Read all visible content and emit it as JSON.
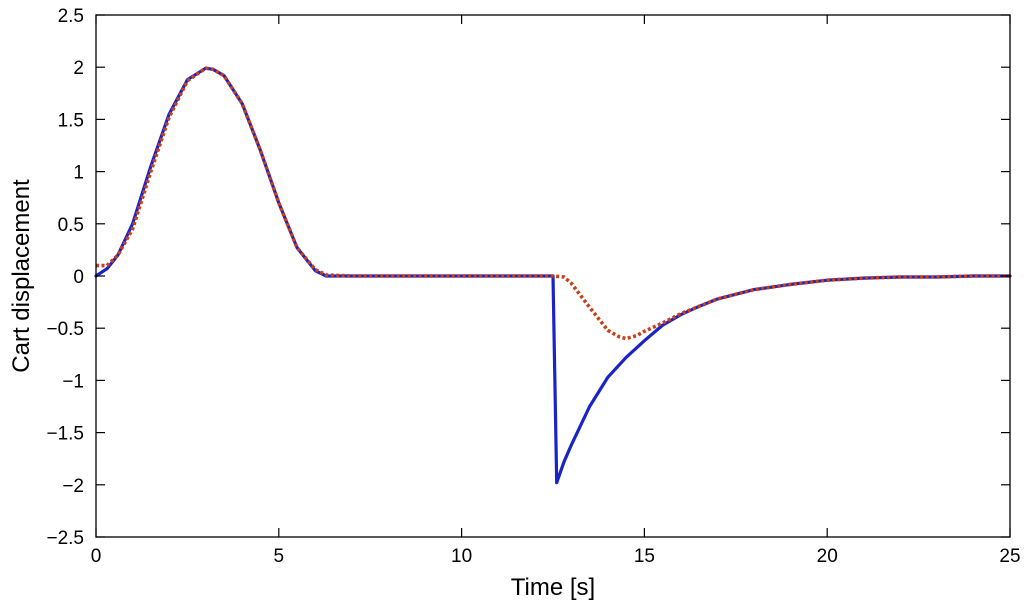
{
  "chart_data": {
    "type": "line",
    "title": "",
    "xlabel": "Time [s]",
    "ylabel": "Cart displacement",
    "xlim": [
      0,
      25
    ],
    "ylim": [
      -2.5,
      2.5
    ],
    "xticks": [
      0,
      5,
      10,
      15,
      20,
      25
    ],
    "xtick_labels": [
      "0",
      "5",
      "10",
      "15",
      "20",
      "25"
    ],
    "yticks": [
      2.5,
      2,
      1.5,
      1,
      0.5,
      0,
      -0.5,
      -1,
      -1.5,
      -2,
      -2.5
    ],
    "ytick_labels": [
      "2.5",
      "2",
      "1.5",
      "1",
      "0.5",
      "0",
      "−0.5",
      "−1",
      "−1.5",
      "−2",
      "−2.5"
    ],
    "grid": false,
    "legend": "none",
    "series": [
      {
        "color": "#1a23c8",
        "style": "solid",
        "x": [
          0,
          0.3,
          0.6,
          1.0,
          1.5,
          2.0,
          2.5,
          3.0,
          3.2,
          3.5,
          4.0,
          4.5,
          5.0,
          5.5,
          6.0,
          6.3,
          7.0,
          8.0,
          9.0,
          10.0,
          11.0,
          12.0,
          12.5,
          12.6,
          12.8,
          13.0,
          13.5,
          14.0,
          14.5,
          15.0,
          15.5,
          16.0,
          16.5,
          17.0,
          18.0,
          19.0,
          20.0,
          21.0,
          22.0,
          23.0,
          24.0,
          25.0
        ],
        "y": [
          0,
          0.07,
          0.2,
          0.5,
          1.05,
          1.55,
          1.88,
          1.99,
          1.98,
          1.92,
          1.65,
          1.2,
          0.7,
          0.27,
          0.05,
          0,
          0,
          0,
          0,
          0,
          0,
          0,
          0,
          -1.98,
          -1.78,
          -1.62,
          -1.25,
          -0.97,
          -0.78,
          -0.62,
          -0.47,
          -0.37,
          -0.29,
          -0.22,
          -0.13,
          -0.08,
          -0.04,
          -0.02,
          -0.01,
          -0.01,
          0,
          0
        ]
      },
      {
        "color": "#c8401a",
        "style": "dotted",
        "x": [
          0,
          0.3,
          0.6,
          1.0,
          1.5,
          2.0,
          2.5,
          3.0,
          3.2,
          3.5,
          4.0,
          4.5,
          5.0,
          5.5,
          6.0,
          6.3,
          7.0,
          8.0,
          9.0,
          10.0,
          11.0,
          12.0,
          12.5,
          12.8,
          13.0,
          13.5,
          14.0,
          14.3,
          14.5,
          14.8,
          15.0,
          15.5,
          16.0,
          16.5,
          17.0,
          18.0,
          19.0,
          20.0,
          21.0,
          22.0,
          23.0,
          24.0,
          25.0
        ],
        "y": [
          0.1,
          0.1,
          0.2,
          0.45,
          1.0,
          1.52,
          1.87,
          1.99,
          1.98,
          1.92,
          1.65,
          1.2,
          0.7,
          0.27,
          0.06,
          0.01,
          0,
          0,
          0,
          0,
          0,
          0,
          0,
          -0.01,
          -0.07,
          -0.3,
          -0.52,
          -0.58,
          -0.6,
          -0.57,
          -0.53,
          -0.45,
          -0.36,
          -0.29,
          -0.22,
          -0.13,
          -0.08,
          -0.04,
          -0.02,
          -0.01,
          -0.01,
          0,
          0
        ]
      }
    ]
  }
}
